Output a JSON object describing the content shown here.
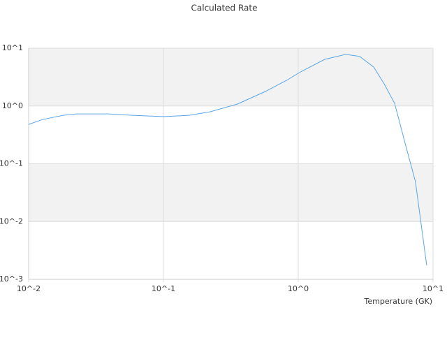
{
  "chart_data": {
    "type": "line",
    "title": "Calculated Rate",
    "x_label": "Temperature (GK)",
    "xscale": "log",
    "yscale": "log",
    "xlim": [
      0.01,
      10
    ],
    "ylim": [
      0.001,
      10
    ],
    "xticks": [
      {
        "value": 0.01,
        "label": "10^-2"
      },
      {
        "value": 0.1,
        "label": "10^-1"
      },
      {
        "value": 1,
        "label": "10^0"
      },
      {
        "value": 10,
        "label": "10^1"
      }
    ],
    "yticks": [
      {
        "value": 0.001,
        "label": "10^-3"
      },
      {
        "value": 0.01,
        "label": "10^-2"
      },
      {
        "value": 0.1,
        "label": "10^-1"
      },
      {
        "value": 1,
        "label": "10^0"
      },
      {
        "value": 10,
        "label": "10^1"
      }
    ],
    "grid": true,
    "series": [
      {
        "color": "#5aa5e6",
        "x": [
          0.01,
          0.0126,
          0.018,
          0.0228,
          0.039,
          0.059,
          0.101,
          0.154,
          0.22,
          0.354,
          0.57,
          0.82,
          1.04,
          1.57,
          2.25,
          2.86,
          3.63,
          4.34,
          5.19,
          6.2,
          7.4,
          8.97
        ],
        "values": [
          0.48,
          0.58,
          0.69,
          0.73,
          0.73,
          0.69,
          0.655,
          0.69,
          0.79,
          1.08,
          1.78,
          2.78,
          3.88,
          6.4,
          7.8,
          7.2,
          4.7,
          2.42,
          1.11,
          0.23,
          0.049,
          0.00175
        ]
      }
    ]
  }
}
